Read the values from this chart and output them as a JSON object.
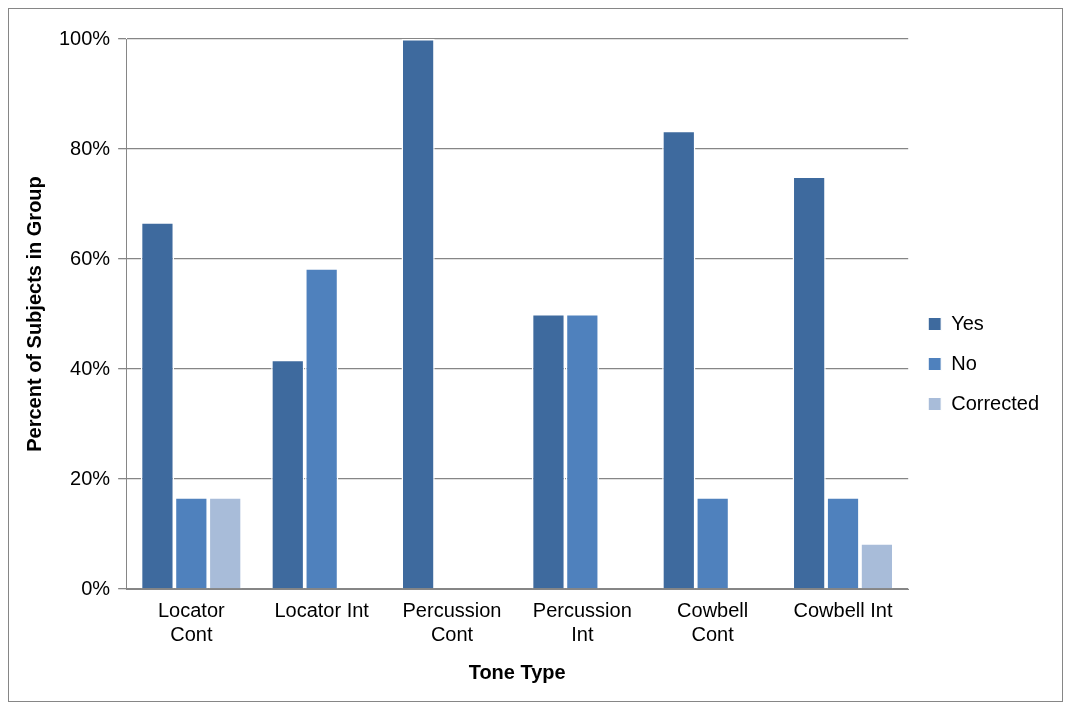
{
  "chart_data": {
    "type": "bar",
    "xlabel": "Tone Type",
    "ylabel": "Percent of Subjects in Group",
    "categories": [
      "Locator Cont",
      "Locator Int",
      "Percussion Cont",
      "Percussion Int",
      "Cowbell Cont",
      "Cowbell Int"
    ],
    "series": [
      {
        "name": "Yes",
        "color": "#3e6a9e",
        "values": [
          66.7,
          41.7,
          100,
          50,
          83.3,
          75
        ]
      },
      {
        "name": "No",
        "color": "#4f81bd",
        "values": [
          16.7,
          58.3,
          0,
          50,
          16.7,
          16.7
        ]
      },
      {
        "name": "Corrected",
        "color": "#a8bcd9",
        "values": [
          16.7,
          0,
          0,
          0,
          0,
          8.3
        ]
      }
    ],
    "ylim": [
      0,
      100
    ],
    "yticks": [
      {
        "value": 0,
        "label": "0%"
      },
      {
        "value": 20,
        "label": "20%"
      },
      {
        "value": 40,
        "label": "40%"
      },
      {
        "value": 60,
        "label": "60%"
      },
      {
        "value": 80,
        "label": "80%"
      },
      {
        "value": 100,
        "label": "100%"
      }
    ],
    "grid": "y",
    "legend": "right"
  }
}
